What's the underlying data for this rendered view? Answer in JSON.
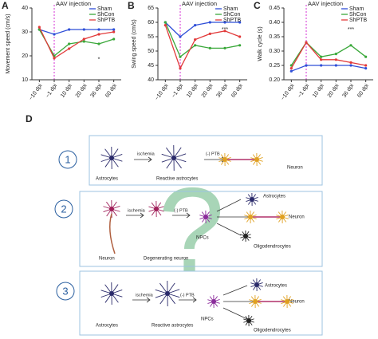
{
  "chart_data": [
    {
      "type": "line",
      "panel": "A",
      "title": "AAV injection",
      "y_label": "Movement speed (cm/s)",
      "categories": [
        "−10 dpi",
        "−1 dpi",
        "10 dpi",
        "20 dpi",
        "36 dpi",
        "60 dpi"
      ],
      "ylim": [
        10,
        40
      ],
      "yticks": [
        10,
        20,
        30,
        40
      ],
      "annotation": "*",
      "series": [
        {
          "name": "Sham",
          "color": "#2f4fd8",
          "values": [
            31,
            29,
            31,
            31,
            31,
            31
          ]
        },
        {
          "name": "ShCon",
          "color": "#3aa83a",
          "values": [
            31,
            20,
            25,
            26,
            25,
            27
          ]
        },
        {
          "name": "ShPTB",
          "color": "#e23a3a",
          "values": [
            32,
            19,
            23,
            27,
            29,
            30
          ]
        }
      ]
    },
    {
      "type": "line",
      "panel": "B",
      "title": "AAV injection",
      "y_label": "Swing speed (cm/s)",
      "categories": [
        "−10 dpi",
        "−1 dpi",
        "10 dpi",
        "20 dpi",
        "36 dpi",
        "60 dpi"
      ],
      "ylim": [
        40,
        65
      ],
      "yticks": [
        40,
        45,
        50,
        55,
        60,
        65
      ],
      "annotation": "***",
      "series": [
        {
          "name": "Sham",
          "color": "#2f4fd8",
          "values": [
            60,
            55,
            59,
            60,
            60,
            60
          ]
        },
        {
          "name": "ShCon",
          "color": "#3aa83a",
          "values": [
            60,
            48,
            52,
            51,
            51,
            52
          ]
        },
        {
          "name": "ShPTB",
          "color": "#e23a3a",
          "values": [
            59,
            44,
            54,
            56,
            57,
            55
          ]
        }
      ]
    },
    {
      "type": "line",
      "panel": "C",
      "title": "AAV injection",
      "y_label": "Walk cycle (s)",
      "categories": [
        "−10 dpi",
        "−1 dpi",
        "10 dpi",
        "20 dpi",
        "36 dpi",
        "60 dpi"
      ],
      "ylim": [
        0.2,
        0.45
      ],
      "yticks": [
        {
          "value": 0.2,
          "label": "0.20"
        },
        0.25,
        {
          "value": 0.3,
          "label": "0.30"
        },
        0.35,
        {
          "value": 0.4,
          "label": "0.40"
        },
        0.45
      ],
      "annotation": "***",
      "series": [
        {
          "name": "Sham",
          "color": "#2f4fd8",
          "values": [
            0.23,
            0.25,
            0.25,
            0.25,
            0.25,
            0.24
          ]
        },
        {
          "name": "ShCon",
          "color": "#3aa83a",
          "values": [
            0.25,
            0.33,
            0.28,
            0.29,
            0.32,
            0.28
          ]
        },
        {
          "name": "ShPTB",
          "color": "#e23a3a",
          "values": [
            0.24,
            0.33,
            0.27,
            0.27,
            0.26,
            0.25
          ]
        }
      ]
    }
  ],
  "diagram": {
    "label": "D",
    "question": "?",
    "rows": [
      {
        "number": "1",
        "texts": [
          "Astrocytes",
          "Reactive astrocytes",
          "Neuron",
          "ischemia",
          "(-) PTB"
        ]
      },
      {
        "number": "2",
        "texts": [
          "Neuron",
          "Degenerating neuron",
          "NPCs",
          "Astrocytes",
          "Neuron",
          "Oligodendrocytes",
          "ischemia",
          "(-) PTB"
        ]
      },
      {
        "number": "3",
        "texts": [
          "Astrocytes",
          "Reactive astrocytes",
          "NPCs",
          "Astrocytes",
          "Neuron",
          "Oligodendrocytes",
          "ischemia",
          "(-) PTB"
        ]
      }
    ]
  }
}
